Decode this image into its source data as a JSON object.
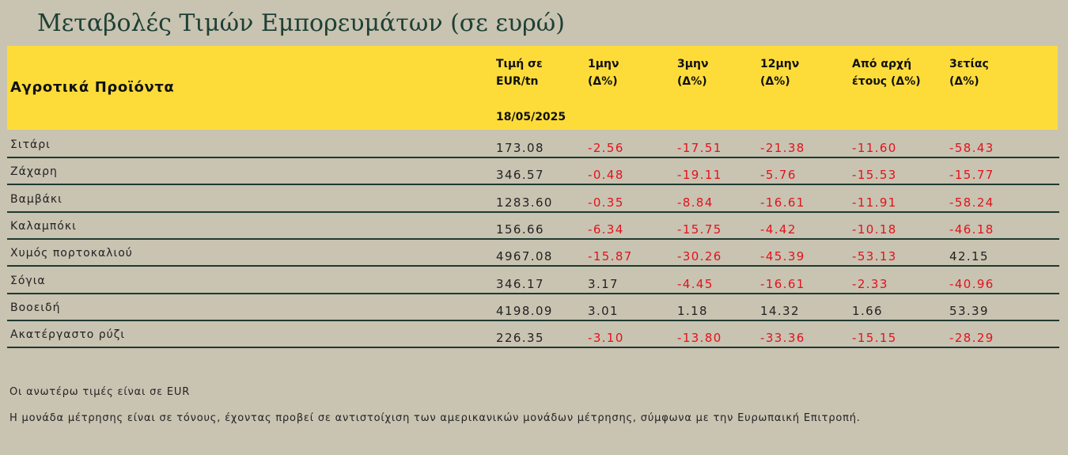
{
  "title": "Μεταβολές Τιμών Εμπορευμάτων (σε ευρώ)",
  "header": {
    "section": "Αγροτικά Προϊόντα",
    "price_col": [
      "Τιμή σε",
      "EUR/tn"
    ],
    "date": "18/05/2025",
    "cols": [
      [
        "1μην",
        "(Δ%)"
      ],
      [
        "3μην",
        "(Δ%)"
      ],
      [
        "12μην",
        "(Δ%)"
      ],
      [
        "Από αρχή",
        "έτους  (Δ%)"
      ],
      [
        "3ετίας",
        "(Δ%)"
      ]
    ]
  },
  "rows": [
    {
      "name": "Σιτάρι",
      "price": "173.08",
      "values": [
        "-2.56",
        "-17.51",
        "-21.38",
        "-11.60",
        "-58.43"
      ]
    },
    {
      "name": "Ζάχαρη",
      "price": "346.57",
      "values": [
        "-0.48",
        "-19.11",
        "-5.76",
        "-15.53",
        "-15.77"
      ]
    },
    {
      "name": "Βαμβάκι",
      "price": "1283.60",
      "values": [
        "-0.35",
        "-8.84",
        "-16.61",
        "-11.91",
        "-58.24"
      ]
    },
    {
      "name": "Καλαμπόκι",
      "price": "156.66",
      "values": [
        "-6.34",
        "-15.75",
        "-4.42",
        "-10.18",
        "-46.18"
      ]
    },
    {
      "name": "Χυμός πορτοκαλιού",
      "price": "4967.08",
      "values": [
        "-15.87",
        "-30.26",
        "-45.39",
        "-53.13",
        "42.15"
      ]
    },
    {
      "name": "Σόγια",
      "price": "346.17",
      "values": [
        "3.17",
        "-4.45",
        "-16.61",
        "-2.33",
        "-40.96"
      ]
    },
    {
      "name": "Βοοειδή",
      "price": "4198.09",
      "values": [
        "3.01",
        "1.18",
        "14.32",
        "1.66",
        "53.39"
      ]
    },
    {
      "name": "Ακατέργαστο ρύζι",
      "price": "226.35",
      "values": [
        "-3.10",
        "-13.80",
        "-33.36",
        "-15.15",
        "-28.29"
      ]
    }
  ],
  "notes": [
    "Οι ανωτέρω τιμές είναι σε EUR",
    "Η μονάδα μέτρησης είναι σε τόνους, έχοντας προβεί σε αντιστοίχιση των αμερικανικών μονάδων μέτρησης, σύμφωνα με την Ευρωπαική Επιτροπή."
  ],
  "colors": {
    "negative": "#e3121b",
    "header_bg": "#fddc3a",
    "page_bg": "#c9c3b2",
    "title": "#1d4034"
  }
}
